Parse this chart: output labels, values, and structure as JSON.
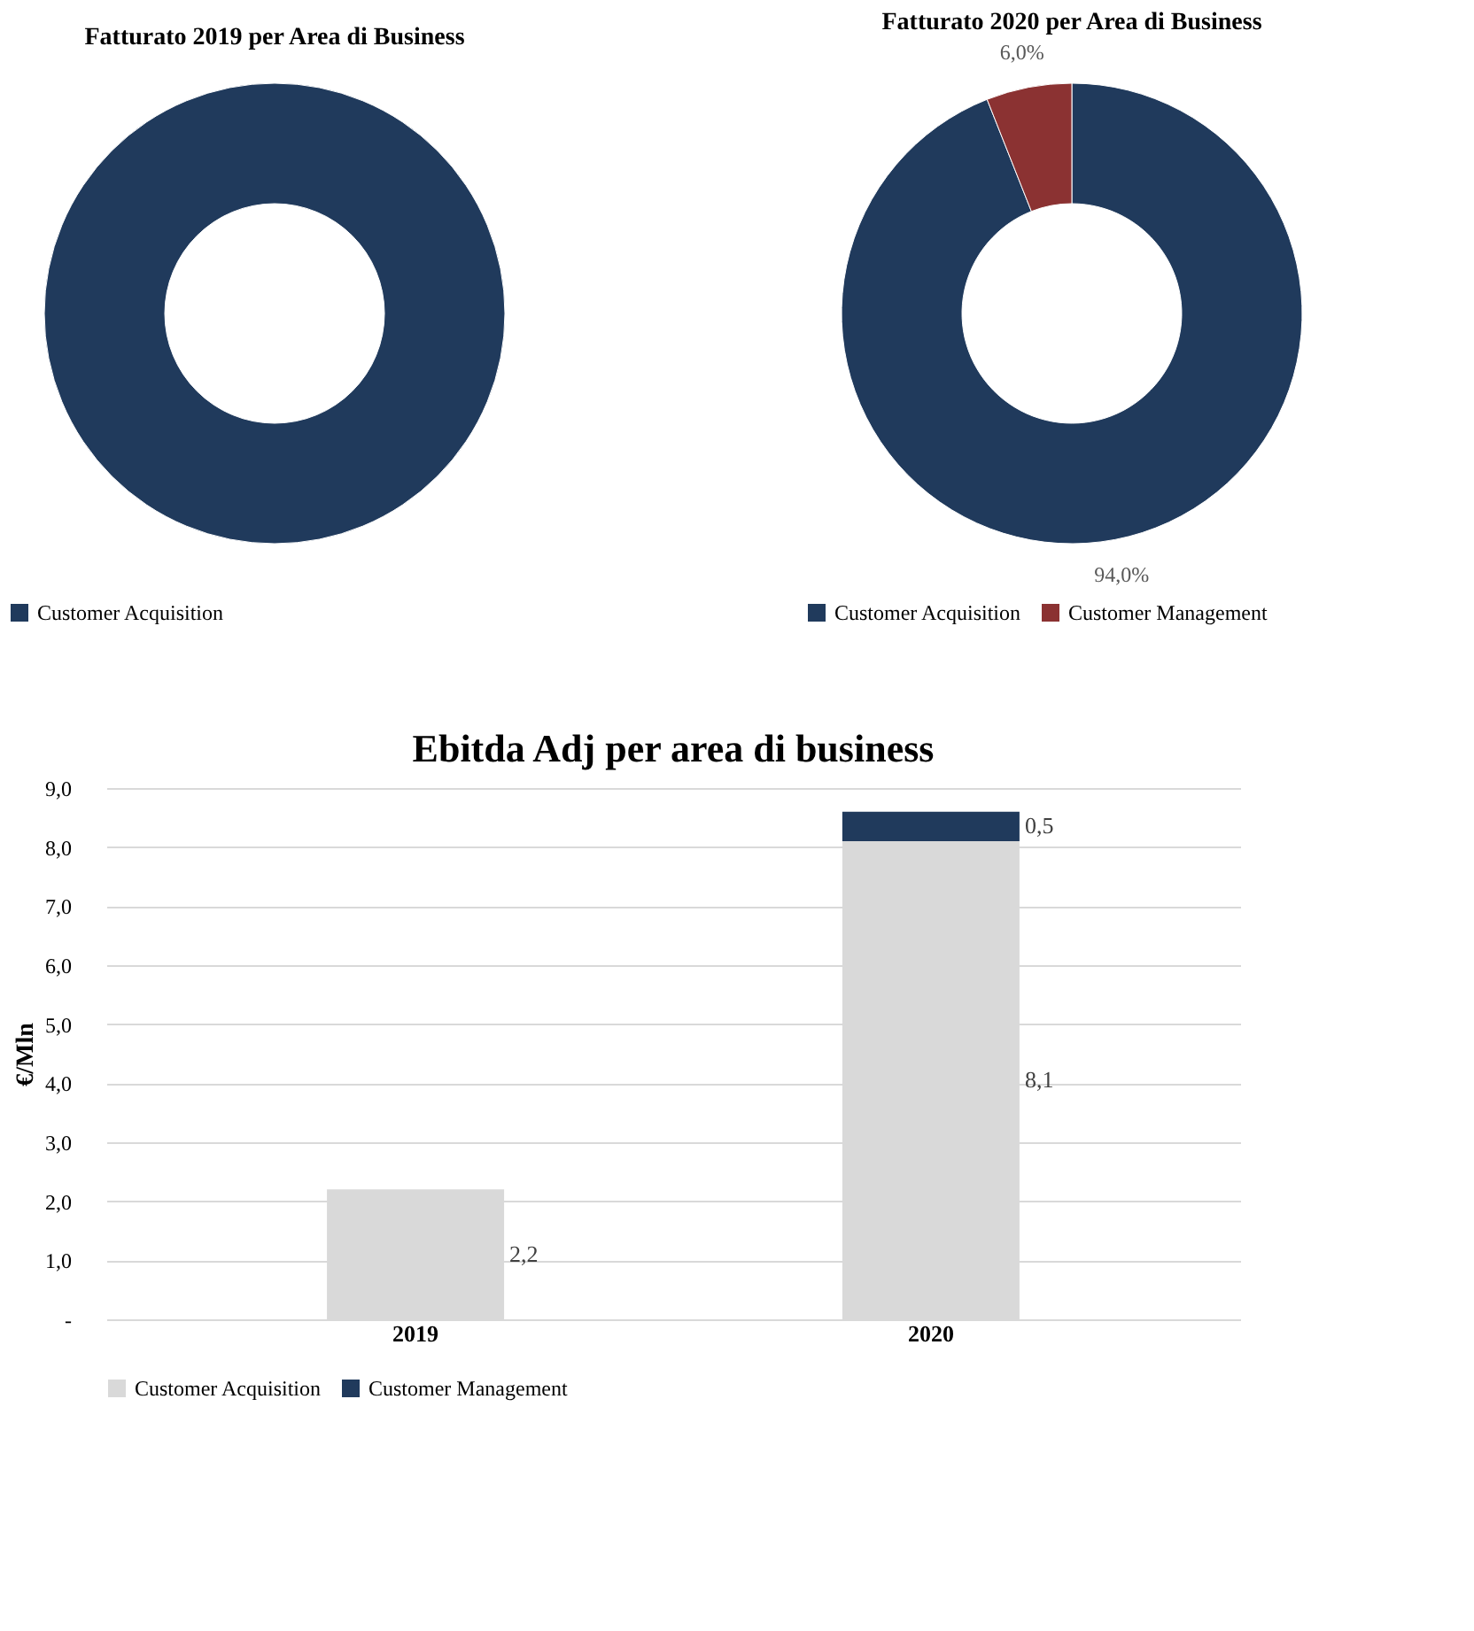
{
  "chart_data": [
    {
      "type": "donut",
      "title": "Fatturato 2019 per Area di Business",
      "categories": [
        "Customer Acquisition"
      ],
      "values": [
        100
      ],
      "colors": [
        "#203a5c"
      ],
      "legend": "bottom"
    },
    {
      "type": "donut",
      "title": "Fatturato 2020 per Area di Business",
      "categories": [
        "Customer Acquisition",
        "Customer Management"
      ],
      "values": [
        94,
        6
      ],
      "colors": [
        "#203a5c",
        "#8b3232"
      ],
      "value_labels": [
        "94,0%",
        "6,0%"
      ],
      "legend": "bottom"
    },
    {
      "type": "bar",
      "title": "Ebitda Adj per area di business",
      "ylabel": "€/Mln",
      "categories": [
        "2019",
        "2020"
      ],
      "stacked": true,
      "series": [
        {
          "name": "Customer Acquisition",
          "color": "#d9d9d9",
          "values": [
            2.2,
            8.1
          ],
          "value_labels": [
            "2,2",
            "8,1"
          ]
        },
        {
          "name": "Customer Management",
          "color": "#203a5c",
          "values": [
            null,
            0.5
          ],
          "value_labels": [
            null,
            "0,5"
          ]
        }
      ],
      "ylim": [
        0,
        9
      ],
      "yticks": [
        {
          "value": 0,
          "label": "-"
        },
        {
          "value": 1,
          "label": "1,0"
        },
        {
          "value": 2,
          "label": "2,0"
        },
        {
          "value": 3,
          "label": "3,0"
        },
        {
          "value": 4,
          "label": "4,0"
        },
        {
          "value": 5,
          "label": "5,0"
        },
        {
          "value": 6,
          "label": "6,0"
        },
        {
          "value": 7,
          "label": "7,0"
        },
        {
          "value": 8,
          "label": "8,0"
        },
        {
          "value": 9,
          "label": "9,0"
        }
      ],
      "grid": "y",
      "legend": "bottom"
    }
  ]
}
